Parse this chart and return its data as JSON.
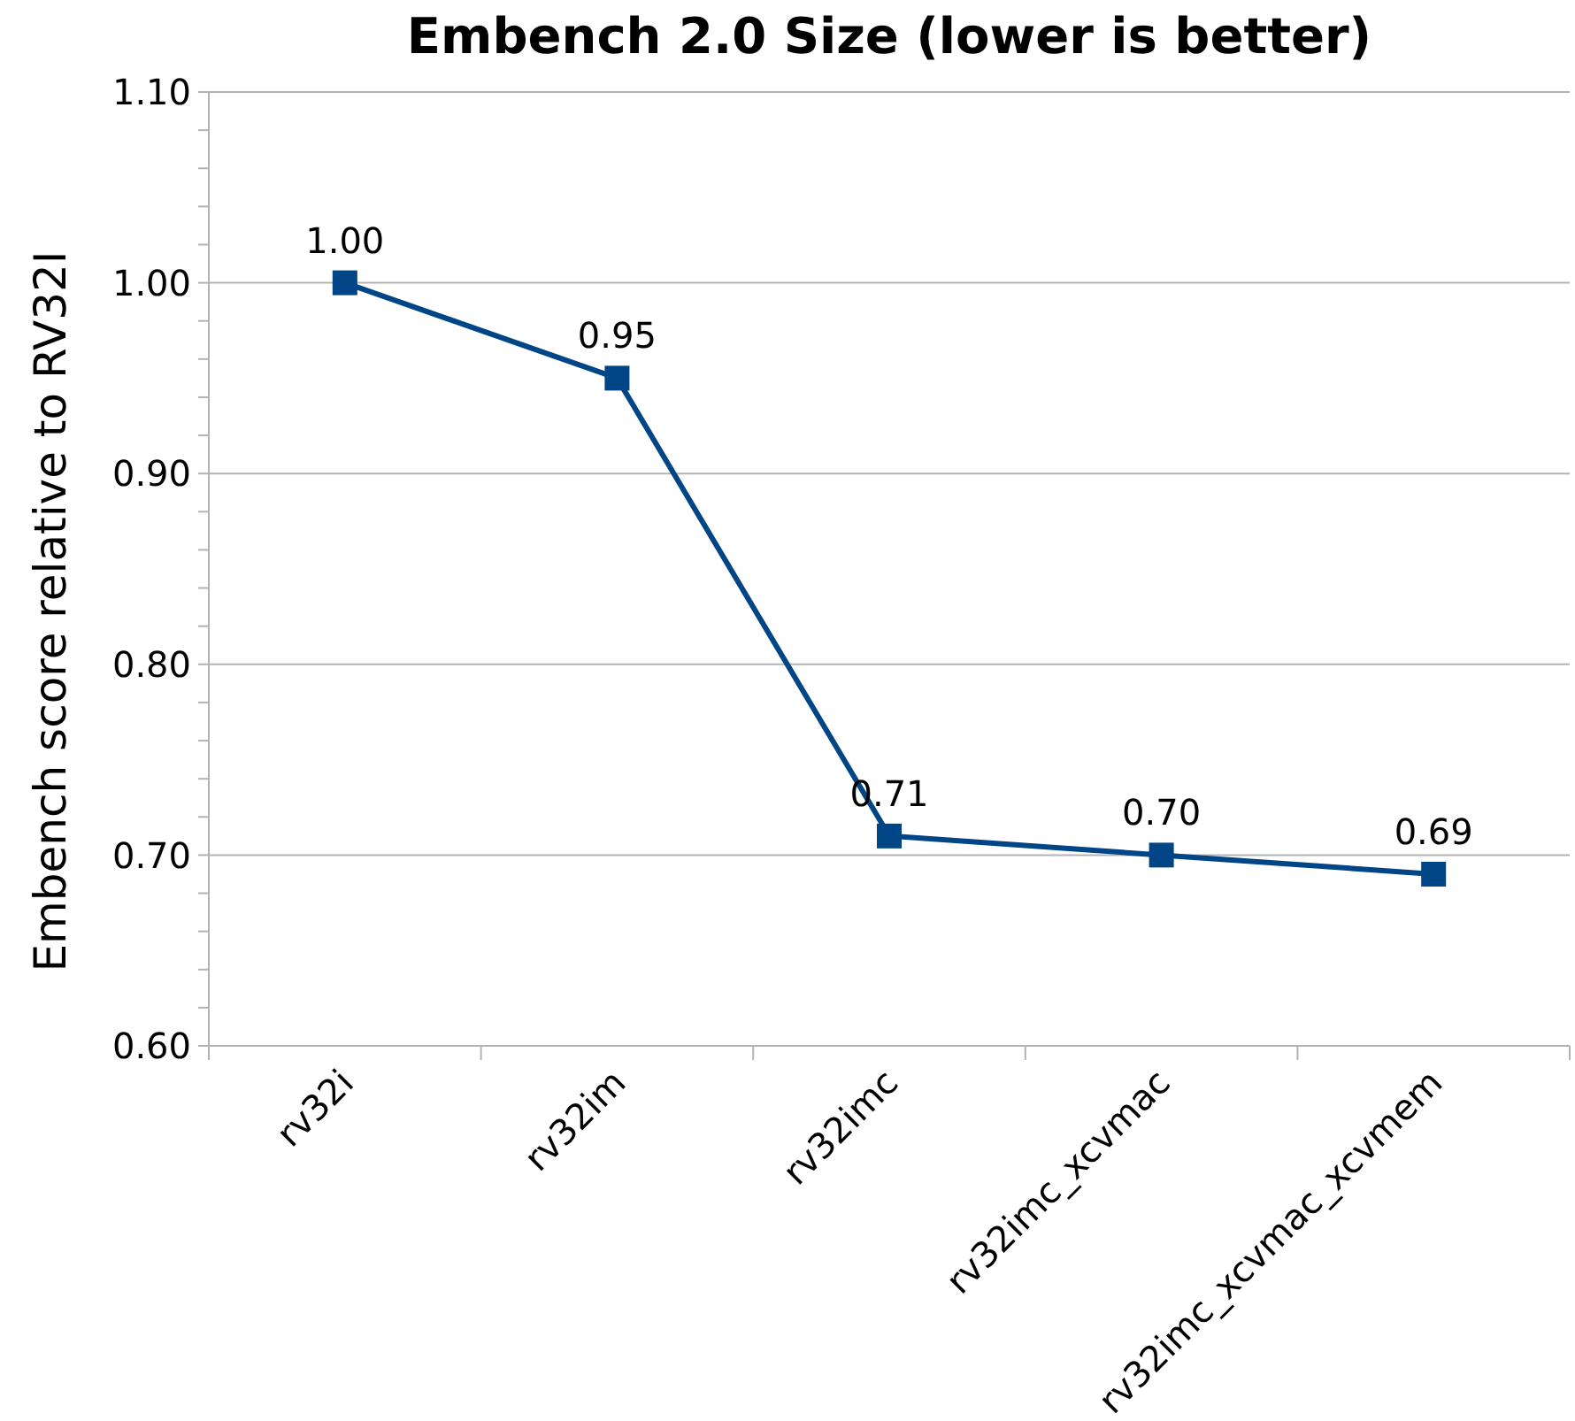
{
  "chart_data": {
    "type": "line",
    "title": "Embench 2.0 Size (lower is better)",
    "ylabel": "Embench score relative to RV32I",
    "categories": [
      "rv32i",
      "rv32im",
      "rv32imc",
      "rv32imc_xcvmac",
      "rv32imc_xcvmac_xcvmem"
    ],
    "values": [
      1.0,
      0.95,
      0.71,
      0.7,
      0.69
    ],
    "value_labels": [
      "1.00",
      "0.95",
      "0.71",
      "0.70",
      "0.69"
    ],
    "color": "#004586",
    "ylim": [
      0.6,
      1.1
    ],
    "yticks": [
      {
        "value": 0.6,
        "label": "0.60"
      },
      {
        "value": 0.62,
        "label": null
      },
      {
        "value": 0.64,
        "label": null
      },
      {
        "value": 0.66,
        "label": null
      },
      {
        "value": 0.68,
        "label": null
      },
      {
        "value": 0.7,
        "label": "0.70"
      },
      {
        "value": 0.72,
        "label": null
      },
      {
        "value": 0.74,
        "label": null
      },
      {
        "value": 0.76,
        "label": null
      },
      {
        "value": 0.78,
        "label": null
      },
      {
        "value": 0.8,
        "label": "0.80"
      },
      {
        "value": 0.82,
        "label": null
      },
      {
        "value": 0.84,
        "label": null
      },
      {
        "value": 0.86,
        "label": null
      },
      {
        "value": 0.88,
        "label": null
      },
      {
        "value": 0.9,
        "label": "0.90"
      },
      {
        "value": 0.92,
        "label": null
      },
      {
        "value": 0.94,
        "label": null
      },
      {
        "value": 0.96,
        "label": null
      },
      {
        "value": 0.98,
        "label": null
      },
      {
        "value": 1.0,
        "label": "1.00"
      },
      {
        "value": 1.02,
        "label": null
      },
      {
        "value": 1.04,
        "label": null
      },
      {
        "value": 1.06,
        "label": null
      },
      {
        "value": 1.08,
        "label": null
      },
      {
        "value": 1.1,
        "label": "1.10"
      }
    ],
    "grid": "y",
    "marker": "square"
  }
}
